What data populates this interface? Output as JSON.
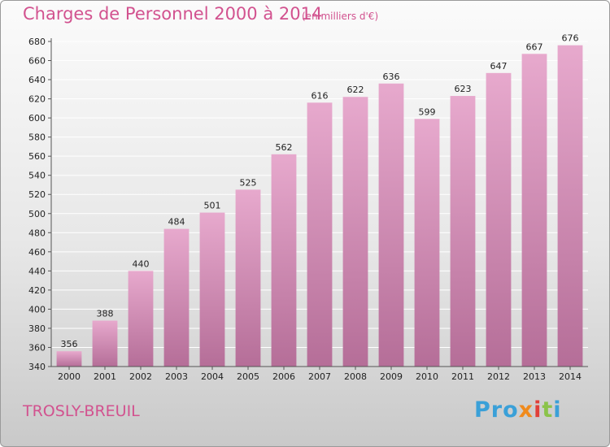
{
  "header": {
    "title": "Charges de Personnel 2000 à 2014",
    "subtitle": "(en milliers d'€)"
  },
  "footer": {
    "commune": "TROSLY-BREUIL",
    "logo_letters": [
      "Pro",
      "x",
      "i",
      "t",
      "i"
    ]
  },
  "colors": {
    "bar_top": "#e7a9cd",
    "bar_bottom": "#b56e98",
    "title": "#d2528f",
    "grid": "#ffffff"
  },
  "chart_data": {
    "type": "bar",
    "categories": [
      "2000",
      "2001",
      "2002",
      "2003",
      "2004",
      "2005",
      "2006",
      "2007",
      "2008",
      "2009",
      "2010",
      "2011",
      "2012",
      "2013",
      "2014"
    ],
    "values": [
      356,
      388,
      440,
      484,
      501,
      525,
      562,
      616,
      622,
      636,
      599,
      623,
      647,
      667,
      676
    ],
    "title": "Charges de Personnel 2000 à 2014",
    "subtitle": "(en milliers d'€)",
    "ylim": [
      340,
      680
    ],
    "yticks": [
      340,
      360,
      380,
      400,
      420,
      440,
      460,
      480,
      500,
      520,
      540,
      560,
      580,
      600,
      620,
      640,
      660,
      680
    ],
    "grid": true,
    "legend": "none"
  }
}
